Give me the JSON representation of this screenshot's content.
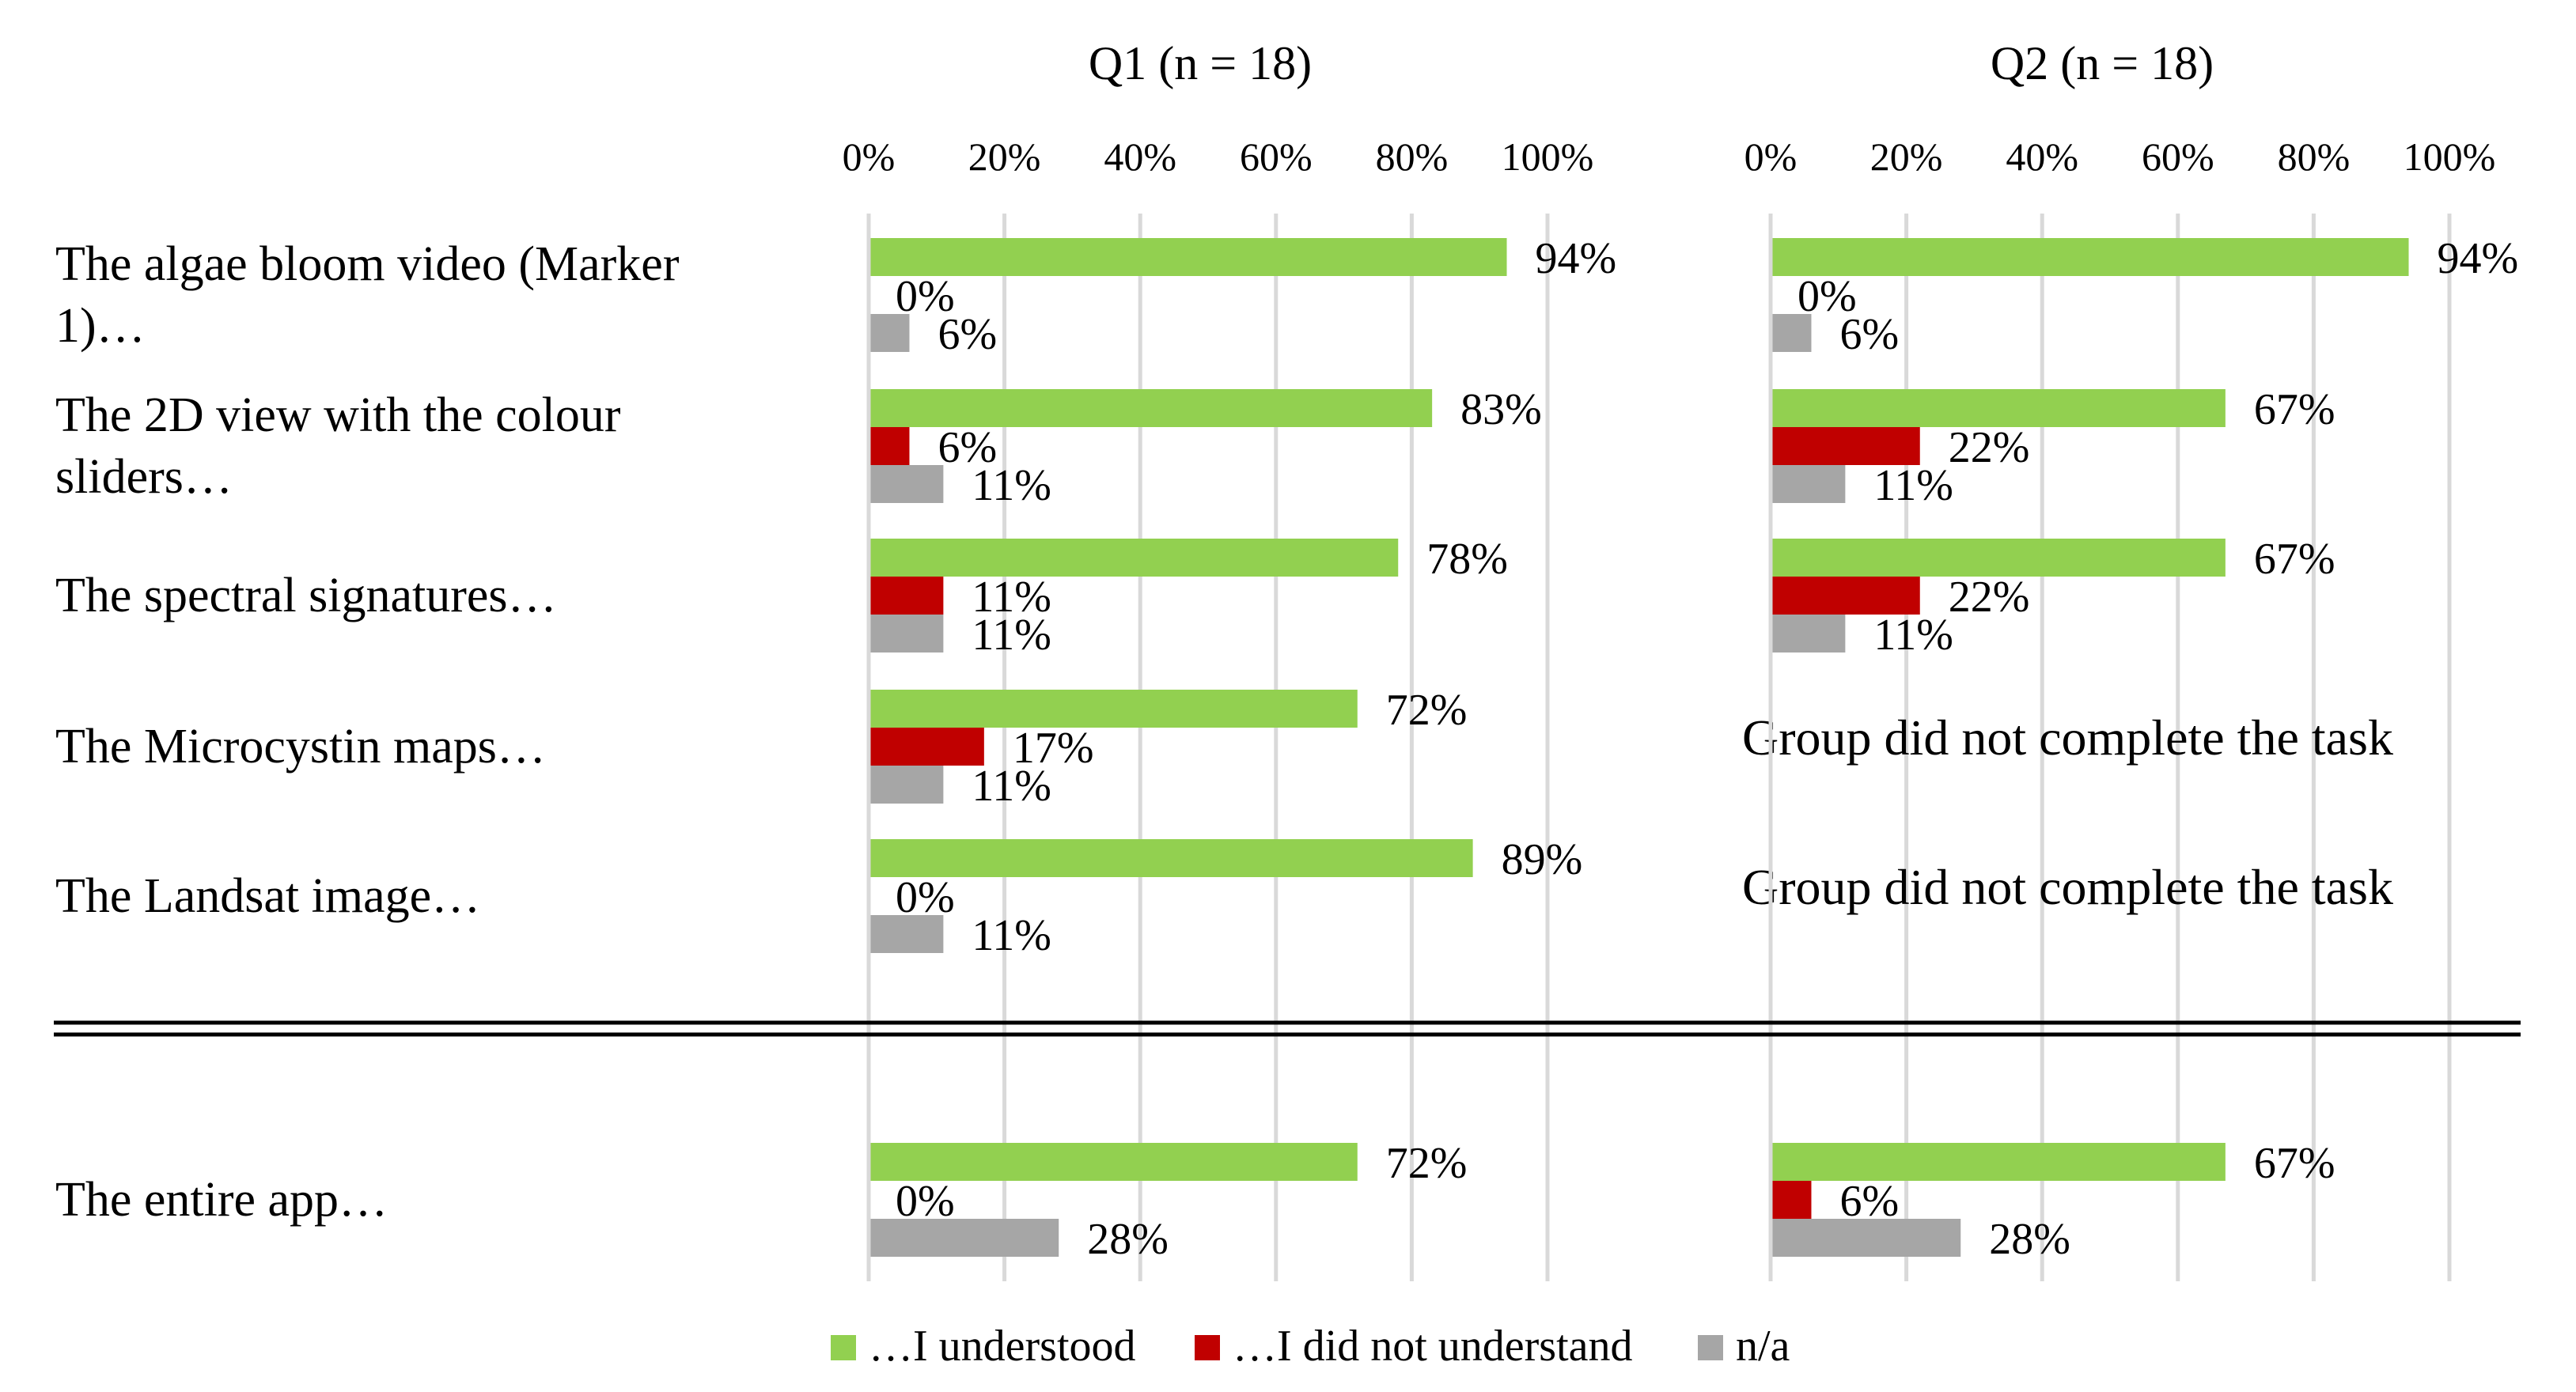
{
  "chart_data": {
    "type": "bar",
    "orientation": "horizontal",
    "categories": [
      [
        "The algae bloom video (Marker",
        "1)…"
      ],
      [
        "The 2D view with the colour",
        "sliders…"
      ],
      [
        "The spectral signatures…"
      ],
      [
        "The Microcystin maps…"
      ],
      [
        "The Landsat image…"
      ],
      [
        "The entire app…"
      ]
    ],
    "legend": [
      {
        "name": "…I understood",
        "color": "#92d050"
      },
      {
        "name": "…I did not understand",
        "color": "#c00000"
      },
      {
        "name": "n/a",
        "color": "#a6a6a6"
      }
    ],
    "x_ticks": [
      "0%",
      "20%",
      "40%",
      "60%",
      "80%",
      "100%"
    ],
    "xlim": [
      0,
      100
    ],
    "grid": true,
    "legend_position": "bottom",
    "panels": [
      {
        "title": "Q1 (n = 18)",
        "series": [
          {
            "name": "…I understood",
            "values": [
              94,
              83,
              78,
              72,
              89,
              72
            ]
          },
          {
            "name": "…I did not understand",
            "values": [
              0,
              6,
              11,
              17,
              0,
              0
            ]
          },
          {
            "name": "n/a",
            "values": [
              6,
              11,
              11,
              11,
              11,
              28
            ]
          }
        ]
      },
      {
        "title": "Q2  (n = 18)",
        "series": [
          {
            "name": "…I understood",
            "values": [
              94,
              67,
              67,
              null,
              null,
              67
            ]
          },
          {
            "name": "…I did not understand",
            "values": [
              0,
              22,
              22,
              null,
              null,
              6
            ]
          },
          {
            "name": "n/a",
            "values": [
              6,
              11,
              11,
              null,
              null,
              28
            ]
          }
        ]
      }
    ],
    "missing_note": "Group did not complete the task"
  }
}
